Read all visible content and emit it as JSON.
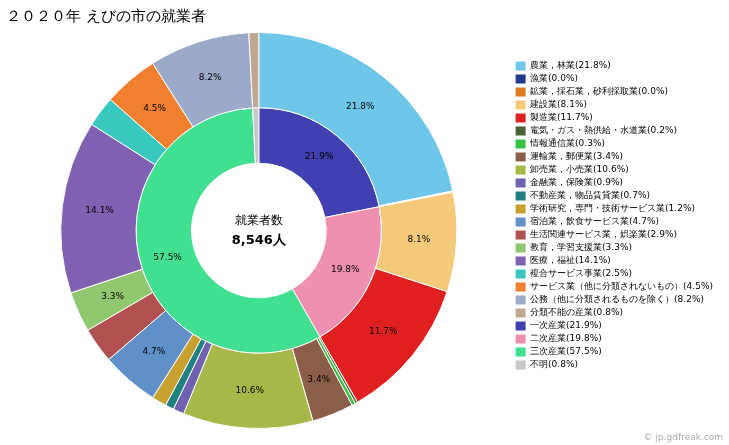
{
  "chart_data": {
    "type": "doughnut",
    "title": "２０２０年 えびの市の就業者",
    "center_text": [
      "就業者数",
      "8,546人"
    ],
    "annotations": [
      "© jp.gdfreak.com"
    ],
    "series": [
      {
        "categories": [
          "農業，林業(21.8%)",
          "漁業(0.0%)",
          "鉱業，採石業，砂利採取業(0.0%)",
          "建設業(8.1%)",
          "製造業(11.7%)",
          "電気・ガス・熱供給・水道業(0.2%)",
          "情報通信業(0.3%)",
          "運輸業，郵便業(3.4%)",
          "卸売業，小売業(10.6%)",
          "金融業，保険業(0.9%)",
          "不動産業，物品賃貸業(0.7%)",
          "学術研究，専門・技術サービス業(1.2%)",
          "宿泊業，飲食サービス業(4.7%)",
          "生活関連サービス業，娯楽業(2.9%)",
          "教育，学習支援業(3.3%)",
          "医療，福祉(14.1%)",
          "複合サービス事業(2.5%)",
          "サービス業（他に分類されないもの）(4.5%)",
          "公務（他に分類されるものを除く）(8.2%)",
          "分類不能の産業(0.8%)"
        ],
        "values": [
          21.8,
          0.05,
          0.05,
          8.1,
          11.7,
          0.2,
          0.3,
          3.4,
          10.6,
          0.9,
          0.7,
          1.2,
          4.7,
          2.9,
          3.3,
          14.1,
          2.5,
          4.5,
          8.2,
          0.8
        ],
        "value_labels": [
          "21.8%",
          null,
          null,
          "8.1%",
          "11.7%",
          null,
          null,
          "3.4%",
          "10.6%",
          null,
          null,
          null,
          "4.7%",
          null,
          "3.3%",
          "14.1%",
          null,
          "4.5%",
          "8.2%",
          null
        ],
        "colors": [
          "#6EC6E8",
          "#1E3A8A",
          "#E07820",
          "#F5C97A",
          "#E02020",
          "#4A6035",
          "#38C040",
          "#8B5E4A",
          "#A8B848",
          "#7060B0",
          "#208080",
          "#C8A030",
          "#6090C8",
          "#B05050",
          "#90C870",
          "#8060B0",
          "#38C8C0",
          "#F08030",
          "#9AAAC8",
          "#C0A890"
        ]
      },
      {
        "categories": [
          "一次産業(21.9%)",
          "二次産業(19.8%)",
          "三次産業(57.5%)",
          "不明(0.8%)"
        ],
        "values": [
          21.9,
          19.8,
          57.5,
          0.8
        ],
        "value_labels": [
          "21.9%",
          "19.8%",
          "57.5%",
          null
        ],
        "colors": [
          "#4040B0",
          "#F090B0",
          "#40E090",
          "#C8C8C8"
        ]
      }
    ],
    "data_labels": true,
    "legend": "right"
  }
}
